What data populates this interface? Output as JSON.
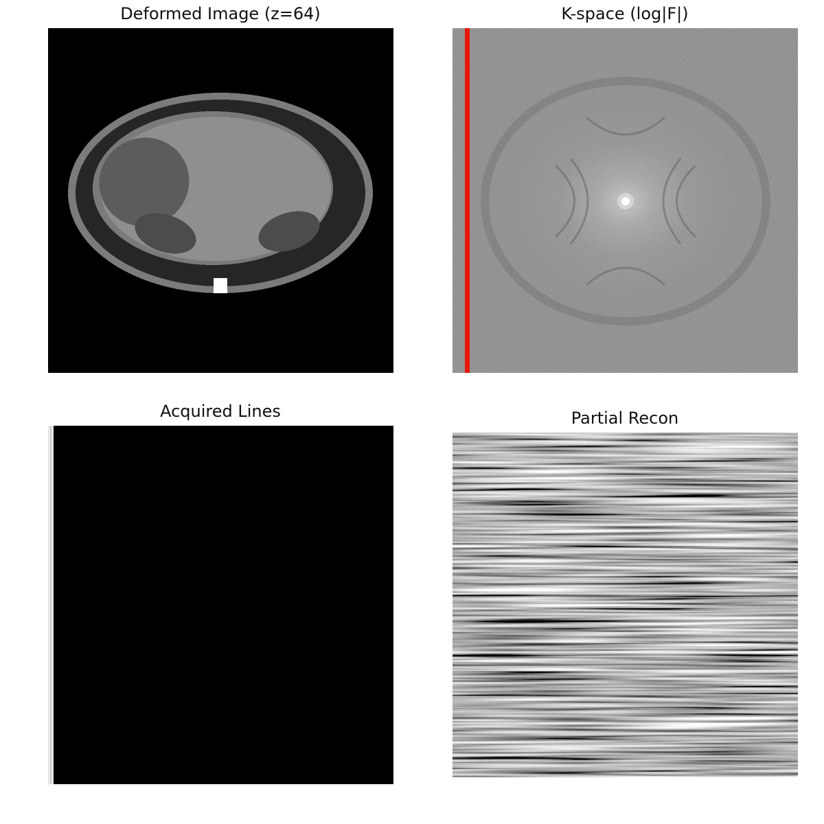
{
  "figure": {
    "panels": [
      {
        "title": "Deformed Image (z=64)",
        "content": "deformed-phantom"
      },
      {
        "title": "K-space (log|F|)",
        "content": "kspace-magnitude"
      },
      {
        "title": "Acquired Lines",
        "content": "acquired-kspace-lines"
      },
      {
        "title": "Partial Recon",
        "content": "partial-reconstruction"
      }
    ]
  },
  "colors": {
    "background": "#ffffff",
    "kspace_marker": "#e8160c",
    "image_bg": "#000000"
  }
}
